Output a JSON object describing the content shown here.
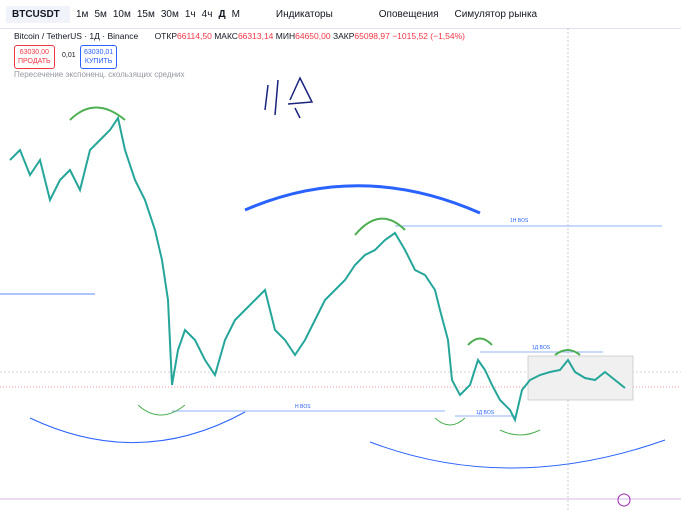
{
  "toolbar": {
    "symbol": "BTCUSDT",
    "intervals": [
      "1м",
      "5м",
      "10м",
      "15м",
      "30м",
      "1ч",
      "4ч",
      "Д",
      "М"
    ],
    "indicators": "Индикаторы",
    "alerts": "Оповещения",
    "replay": "Симулятор рынка"
  },
  "legend": {
    "title": "Bitcoin / TetherUS · 1Д · Binance",
    "open_label": "ОТКР",
    "open": "66114,50",
    "high_label": "МАКС",
    "high": "66313,14",
    "low_label": "МИН",
    "low": "64650,00",
    "close_label": "ЗАКР",
    "close": "65098,97",
    "change": "−1015,52 (−1,54%)"
  },
  "trade": {
    "sell_price": "63030,00",
    "sell": "ПРОДАТЬ",
    "spread": "0,01",
    "buy_price": "63030,01",
    "buy": "КУПИТЬ"
  },
  "indicator": "Пересечение экспоненц. скользящих средних",
  "annotations": [
    "1H BOS",
    "1Д BOS",
    "H BOS",
    "1Д BOS"
  ]
}
